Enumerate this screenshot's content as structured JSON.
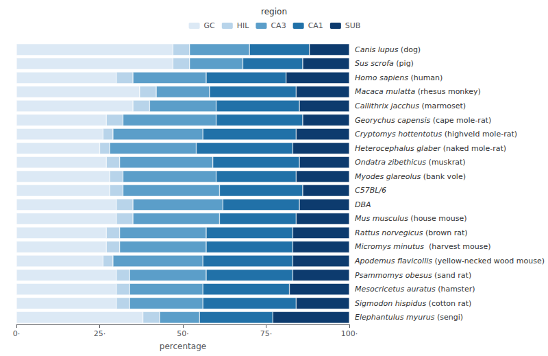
{
  "chart_data": {
    "type": "bar",
    "orientation": "horizontal",
    "stacked": true,
    "legend": "top",
    "legend_title": "region",
    "grid": false,
    "xlabel": "percentage",
    "xlim": [
      0,
      100
    ],
    "xticks": [
      {
        "value": 0,
        "label": "0·"
      },
      {
        "value": 25,
        "label": "25·"
      },
      {
        "value": 50,
        "label": "50·"
      },
      {
        "value": 75,
        "label": "75·"
      },
      {
        "value": 100,
        "label": "100·"
      }
    ],
    "tick_labels": true,
    "categories": [
      "Canis lupus (dog)",
      "Sus scrofa (pig)",
      "Homo sapiens (human)",
      "Macaca mulatta (rhesus monkey)",
      "Callithrix jacchus (marmoset)",
      "Georychus capensis (cape mole-rat)",
      "Cryptomys hottentotus (highveld mole-rat)",
      "Heterocephalus glaber (naked mole-rat)",
      "Ondatra zibethicus (muskrat)",
      "Myodes glareolus (bank vole)",
      "C57BL/6",
      "DBA",
      "Mus musculus (house mouse)",
      "Rattus norvegicus (brown rat)",
      "Micromys minutus  (harvest mouse)",
      "Apodemus flavicollis (yellow-necked wood mouse)",
      "Psammomys obesus (sand rat)",
      "Mesocricetus auratus (hamster)",
      "Sigmodon hispidus (cotton rat)",
      "Elephantulus myurus (sengi)"
    ],
    "series": [
      {
        "name": "GC",
        "color": "#dce9f5",
        "values": [
          47,
          47,
          30,
          37,
          35,
          27,
          26,
          25,
          27,
          28,
          28,
          30,
          30,
          27,
          27,
          26,
          30,
          30,
          30,
          38
        ]
      },
      {
        "name": "HIL",
        "color": "#b8d4ea",
        "values": [
          5,
          5,
          5,
          5,
          5,
          5,
          3,
          3,
          4,
          4,
          4,
          5,
          5,
          4,
          4,
          3,
          4,
          4,
          4,
          5
        ]
      },
      {
        "name": "CA3",
        "color": "#5b9ec9",
        "values": [
          18,
          16,
          22,
          16,
          20,
          28,
          27,
          26,
          28,
          28,
          29,
          27,
          26,
          26,
          26,
          27,
          23,
          22,
          22,
          12
        ]
      },
      {
        "name": "CA1",
        "color": "#2171a8",
        "values": [
          18,
          18,
          24,
          26,
          25,
          26,
          28,
          29,
          26,
          24,
          25,
          23,
          23,
          26,
          26,
          27,
          26,
          26,
          28,
          22
        ]
      },
      {
        "name": "SUB",
        "color": "#0d3b6e",
        "values": [
          12,
          14,
          19,
          16,
          15,
          14,
          16,
          17,
          15,
          16,
          14,
          15,
          16,
          17,
          17,
          17,
          17,
          18,
          16,
          23
        ]
      }
    ]
  }
}
